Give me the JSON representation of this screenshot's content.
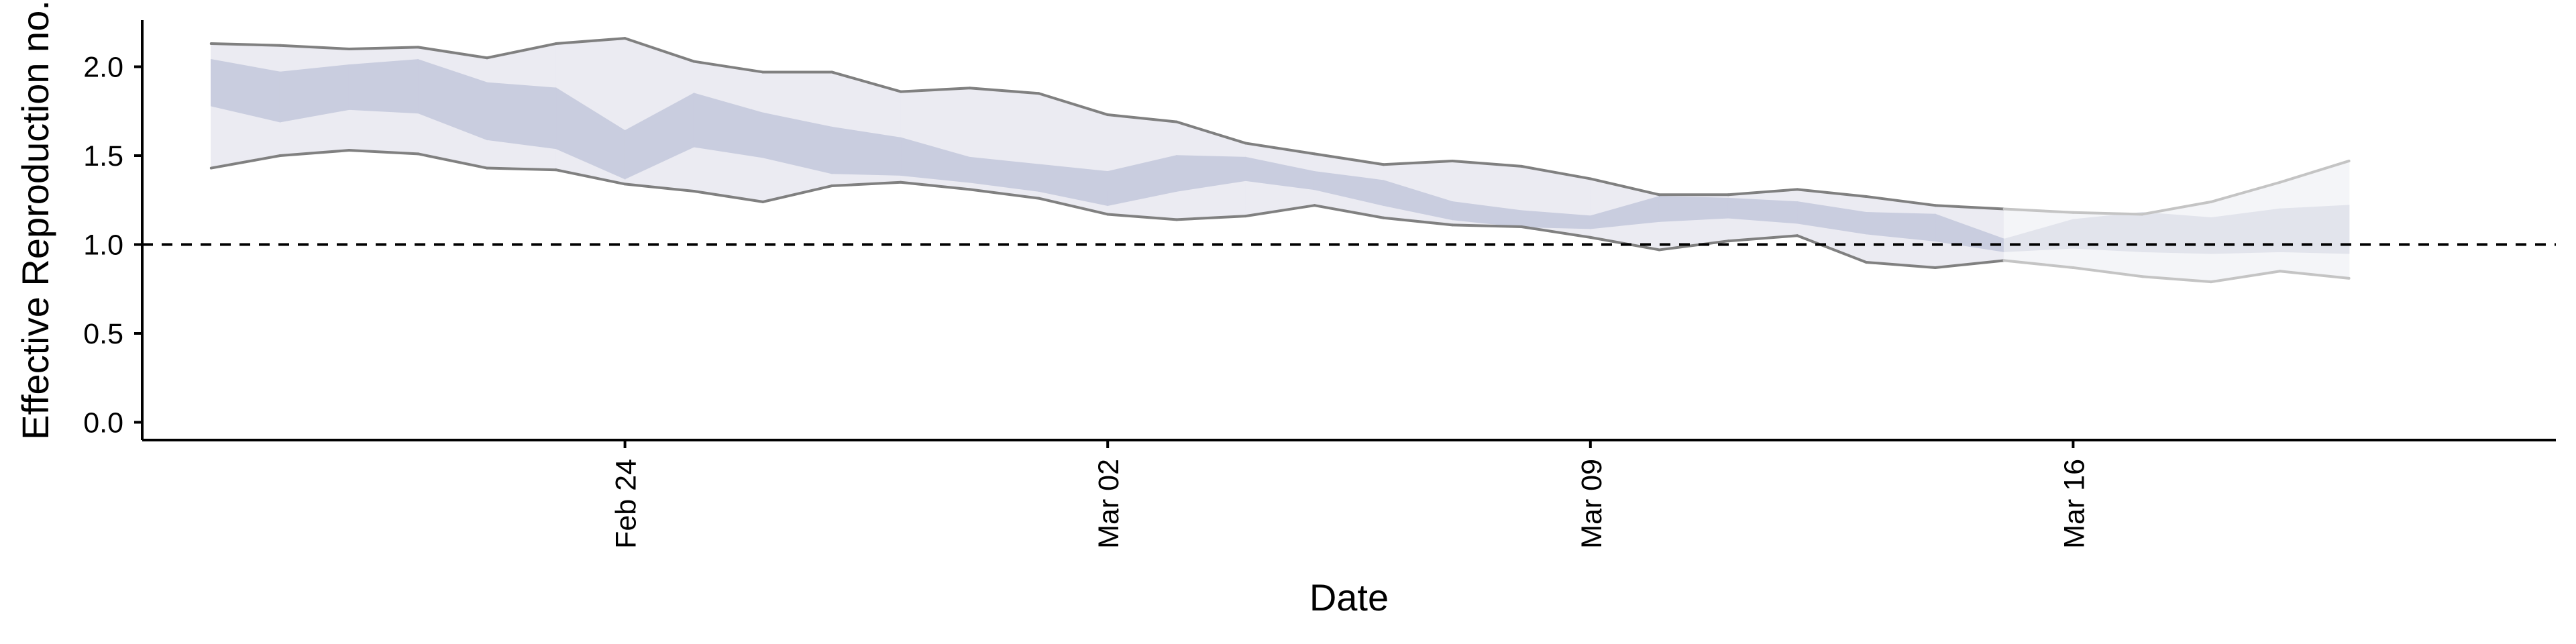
{
  "chart_data": {
    "type": "area",
    "xlabel": "Date",
    "ylabel": "Effective Reproduction no.",
    "x_axis": {
      "ticks": [
        {
          "date": "2020-02-24",
          "label": "Feb 24"
        },
        {
          "date": "2020-03-02",
          "label": "Mar 02"
        },
        {
          "date": "2020-03-09",
          "label": "Mar 09"
        },
        {
          "date": "2020-03-16",
          "label": "Mar 16"
        }
      ],
      "range": [
        "2020-02-17",
        "2020-03-23"
      ]
    },
    "y_axis": {
      "ticks": [
        0.0,
        0.5,
        1.0,
        1.5,
        2.0
      ],
      "tick_labels": [
        "0.0",
        "0.5",
        "1.0",
        "1.5",
        "2.0"
      ],
      "ylim": [
        -0.1,
        2.3
      ]
    },
    "reference_line": {
      "y": 1.0,
      "style": "dashed"
    },
    "grid": false,
    "legend": "none",
    "series": {
      "dates": [
        "2020-02-18",
        "2020-02-19",
        "2020-02-20",
        "2020-02-21",
        "2020-02-22",
        "2020-02-23",
        "2020-02-24",
        "2020-02-25",
        "2020-02-26",
        "2020-02-27",
        "2020-02-28",
        "2020-02-29",
        "2020-03-01",
        "2020-03-02",
        "2020-03-03",
        "2020-03-04",
        "2020-03-05",
        "2020-03-06",
        "2020-03-07",
        "2020-03-08",
        "2020-03-09",
        "2020-03-10",
        "2020-03-11",
        "2020-03-12",
        "2020-03-13",
        "2020-03-14",
        "2020-03-15",
        "2020-03-16",
        "2020-03-17",
        "2020-03-18",
        "2020-03-19",
        "2020-03-20"
      ],
      "upper_90": [
        2.13,
        2.12,
        2.1,
        2.11,
        2.05,
        2.13,
        2.16,
        2.03,
        1.97,
        1.97,
        1.86,
        1.88,
        1.85,
        1.73,
        1.69,
        1.57,
        1.51,
        1.45,
        1.47,
        1.44,
        1.37,
        1.28,
        1.28,
        1.31,
        1.27,
        1.22,
        1.2,
        1.18,
        1.17,
        1.24,
        1.35,
        1.47
      ],
      "lower_90": [
        1.43,
        1.5,
        1.53,
        1.51,
        1.43,
        1.42,
        1.34,
        1.3,
        1.24,
        1.33,
        1.35,
        1.31,
        1.26,
        1.17,
        1.14,
        1.16,
        1.22,
        1.15,
        1.11,
        1.1,
        1.04,
        0.97,
        1.02,
        1.05,
        0.9,
        0.87,
        0.91,
        0.87,
        0.82,
        0.79,
        0.85,
        0.81
      ],
      "upper_50": [
        2.04,
        1.97,
        2.01,
        2.04,
        1.91,
        1.88,
        1.64,
        1.85,
        1.74,
        1.66,
        1.6,
        1.49,
        1.45,
        1.41,
        1.5,
        1.49,
        1.41,
        1.36,
        1.24,
        1.19,
        1.16,
        1.27,
        1.26,
        1.24,
        1.18,
        1.17,
        1.03,
        1.14,
        1.18,
        1.15,
        1.2,
        1.22
      ],
      "lower_50": [
        1.78,
        1.69,
        1.76,
        1.74,
        1.59,
        1.54,
        1.37,
        1.55,
        1.49,
        1.4,
        1.39,
        1.35,
        1.3,
        1.22,
        1.3,
        1.36,
        1.31,
        1.22,
        1.14,
        1.1,
        1.09,
        1.13,
        1.15,
        1.12,
        1.06,
        1.02,
        0.96,
        0.98,
        0.96,
        0.95,
        0.96,
        0.95
      ],
      "estimate_type": [
        "estimate",
        "estimate",
        "estimate",
        "estimate",
        "estimate",
        "estimate",
        "estimate",
        "estimate",
        "estimate",
        "estimate",
        "estimate",
        "estimate",
        "estimate",
        "estimate",
        "estimate",
        "estimate",
        "estimate",
        "estimate",
        "estimate",
        "estimate",
        "estimate",
        "estimate",
        "estimate",
        "estimate",
        "estimate",
        "estimate",
        "estimate",
        "forecast",
        "forecast",
        "forecast",
        "forecast",
        "forecast"
      ]
    },
    "colors": {
      "band_50": "#c9cddf",
      "band_90": "#ebebf2",
      "band_50_forecast": "#e2e4ec",
      "band_90_forecast": "#f4f5f8",
      "bound_line": "#808080",
      "bound_line_forecast": "#c4c4c4",
      "axis": "#000000"
    }
  }
}
